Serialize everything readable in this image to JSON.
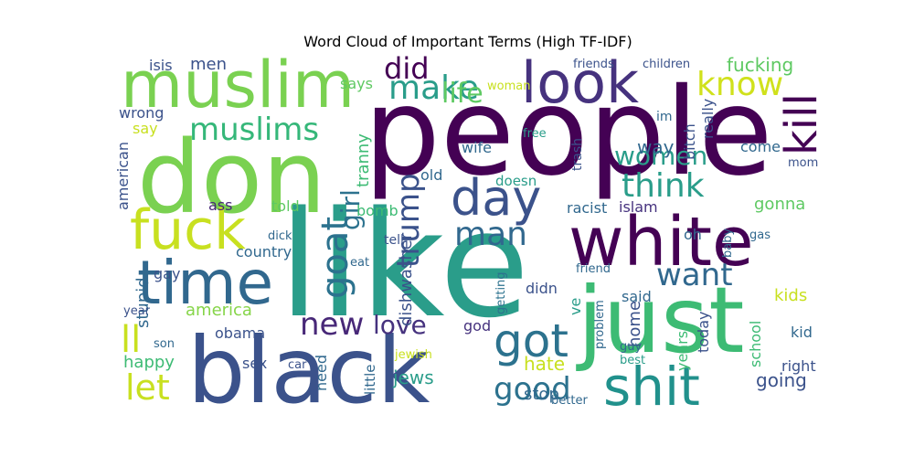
{
  "chart_data": {
    "type": "wordcloud",
    "title": "Word Cloud of Important Terms (High TF-IDF)",
    "colormap": "viridis",
    "words": [
      {
        "text": "people",
        "weight": 1.0,
        "color": "#440154"
      },
      {
        "text": "like",
        "weight": 0.98,
        "color": "#2a9d8a"
      },
      {
        "text": "don",
        "weight": 0.9,
        "color": "#7ad151"
      },
      {
        "text": "black",
        "weight": 0.88,
        "color": "#3b528b"
      },
      {
        "text": "just",
        "weight": 0.84,
        "color": "#3dbb74"
      },
      {
        "text": "white",
        "weight": 0.7,
        "color": "#440154"
      },
      {
        "text": "muslim",
        "weight": 0.62,
        "color": "#7ad151"
      },
      {
        "text": "look",
        "weight": 0.6,
        "color": "#46327e"
      },
      {
        "text": "time",
        "weight": 0.58,
        "color": "#31688e"
      },
      {
        "text": "fuck",
        "weight": 0.55,
        "color": "#c8e020"
      },
      {
        "text": "shit",
        "weight": 0.52,
        "color": "#21918c"
      },
      {
        "text": "day",
        "weight": 0.5,
        "color": "#3b528b"
      },
      {
        "text": "got",
        "weight": 0.45,
        "color": "#2c728e"
      },
      {
        "text": "kill",
        "weight": 0.4,
        "color": "#440154"
      },
      {
        "text": "muslims",
        "weight": 0.36,
        "color": "#35b779"
      },
      {
        "text": "man",
        "weight": 0.36,
        "color": "#31688e"
      },
      {
        "text": "new",
        "weight": 0.34,
        "color": "#482878"
      },
      {
        "text": "ll",
        "weight": 0.34,
        "color": "#c8e020"
      },
      {
        "text": "goat",
        "weight": 0.33,
        "color": "#2c728e"
      },
      {
        "text": "make",
        "weight": 0.32,
        "color": "#2a9d8a"
      },
      {
        "text": "know",
        "weight": 0.31,
        "color": "#d0e11c"
      },
      {
        "text": "think",
        "weight": 0.31,
        "color": "#2a9d8a"
      },
      {
        "text": "want",
        "weight": 0.31,
        "color": "#31688e"
      },
      {
        "text": "did",
        "weight": 0.3,
        "color": "#440154"
      },
      {
        "text": "trump",
        "weight": 0.29,
        "color": "#3b528b"
      },
      {
        "text": "good",
        "weight": 0.29,
        "color": "#2c728e"
      },
      {
        "text": "let",
        "weight": 0.29,
        "color": "#c8e020"
      },
      {
        "text": "life",
        "weight": 0.27,
        "color": "#5ec962"
      },
      {
        "text": "women",
        "weight": 0.27,
        "color": "#2a9d8a"
      },
      {
        "text": "girl",
        "weight": 0.25,
        "color": "#2c728e"
      },
      {
        "text": "love",
        "weight": 0.25,
        "color": "#46327e"
      },
      {
        "text": "fucking",
        "weight": 0.18,
        "color": "#5ec962"
      },
      {
        "text": "america",
        "weight": 0.16,
        "color": "#86d549"
      },
      {
        "text": "tranny",
        "weight": 0.15,
        "color": "#3dbb74"
      },
      {
        "text": "dishwasher",
        "weight": 0.15,
        "color": "#3b528b"
      },
      {
        "text": "happy",
        "weight": 0.15,
        "color": "#3dbb74"
      },
      {
        "text": "jews",
        "weight": 0.15,
        "color": "#2a9d8a"
      },
      {
        "text": "hate",
        "weight": 0.15,
        "color": "#c8e020"
      },
      {
        "text": "stop",
        "weight": 0.15,
        "color": "#31688e"
      },
      {
        "text": "going",
        "weight": 0.15,
        "color": "#3b528b"
      },
      {
        "text": "kids",
        "weight": 0.15,
        "color": "#c8e020"
      },
      {
        "text": "gonna",
        "weight": 0.14,
        "color": "#5ec962"
      },
      {
        "text": "way",
        "weight": 0.14,
        "color": "#31688e"
      },
      {
        "text": "men",
        "weight": 0.13,
        "color": "#3b528b"
      },
      {
        "text": "stupid",
        "weight": 0.13,
        "color": "#31688e"
      },
      {
        "text": "home",
        "weight": 0.13,
        "color": "#3b528b"
      },
      {
        "text": "said",
        "weight": 0.13,
        "color": "#31688e"
      },
      {
        "text": "country",
        "weight": 0.13,
        "color": "#31688e"
      },
      {
        "text": "obama",
        "weight": 0.13,
        "color": "#3b528b"
      },
      {
        "text": "racist",
        "weight": 0.12,
        "color": "#31688e"
      },
      {
        "text": "islam",
        "weight": 0.12,
        "color": "#46327e"
      },
      {
        "text": "oh",
        "weight": 0.12,
        "color": "#31688e"
      },
      {
        "text": "old",
        "weight": 0.12,
        "color": "#31688e"
      },
      {
        "text": "wife",
        "weight": 0.12,
        "color": "#31688e"
      },
      {
        "text": "told",
        "weight": 0.12,
        "color": "#5ec962"
      },
      {
        "text": "bomb",
        "weight": 0.12,
        "color": "#3dbb74"
      },
      {
        "text": "didn",
        "weight": 0.12,
        "color": "#3b528b"
      },
      {
        "text": "need",
        "weight": 0.12,
        "color": "#31688e"
      },
      {
        "text": "god",
        "weight": 0.12,
        "color": "#46327e"
      },
      {
        "text": "bitch",
        "weight": 0.12,
        "color": "#3b528b"
      },
      {
        "text": "really",
        "weight": 0.12,
        "color": "#3b528b"
      },
      {
        "text": "come",
        "weight": 0.12,
        "color": "#31688e"
      },
      {
        "text": "years",
        "weight": 0.12,
        "color": "#3dbb74"
      },
      {
        "text": "today",
        "weight": 0.12,
        "color": "#3b528b"
      },
      {
        "text": "school",
        "weight": 0.12,
        "color": "#3dbb74"
      },
      {
        "text": "right",
        "weight": 0.12,
        "color": "#3b528b"
      },
      {
        "text": "kid",
        "weight": 0.12,
        "color": "#31688e"
      },
      {
        "text": "says",
        "weight": 0.11,
        "color": "#5ec962"
      },
      {
        "text": "isis",
        "weight": 0.11,
        "color": "#3b528b"
      },
      {
        "text": "wrong",
        "weight": 0.11,
        "color": "#3b528b"
      },
      {
        "text": "say",
        "weight": 0.11,
        "color": "#c8e020"
      },
      {
        "text": "american",
        "weight": 0.11,
        "color": "#3b528b"
      },
      {
        "text": "ass",
        "weight": 0.11,
        "color": "#482878"
      },
      {
        "text": "gay",
        "weight": 0.11,
        "color": "#3b528b"
      },
      {
        "text": "ve",
        "weight": 0.11,
        "color": "#2a9d8a"
      },
      {
        "text": "sex",
        "weight": 0.11,
        "color": "#3b528b"
      },
      {
        "text": "little",
        "weight": 0.1,
        "color": "#31688e"
      },
      {
        "text": "doesn",
        "weight": 0.1,
        "color": "#2a9d8a"
      },
      {
        "text": "trash",
        "weight": 0.1,
        "color": "#3b528b"
      },
      {
        "text": "im",
        "weight": 0.1,
        "color": "#31688e"
      },
      {
        "text": "tell",
        "weight": 0.1,
        "color": "#3b528b"
      },
      {
        "text": "children",
        "weight": 0.09,
        "color": "#3b528b"
      },
      {
        "text": "friends",
        "weight": 0.09,
        "color": "#3b528b"
      },
      {
        "text": "friend",
        "weight": 0.09,
        "color": "#31688e"
      },
      {
        "text": "dick",
        "weight": 0.09,
        "color": "#31688e"
      },
      {
        "text": "eat",
        "weight": 0.09,
        "color": "#31688e"
      },
      {
        "text": "year",
        "weight": 0.09,
        "color": "#3b528b"
      },
      {
        "text": "son",
        "weight": 0.09,
        "color": "#31688e"
      },
      {
        "text": "car",
        "weight": 0.09,
        "color": "#3b528b"
      },
      {
        "text": "jewish",
        "weight": 0.09,
        "color": "#c8e020"
      },
      {
        "text": "better",
        "weight": 0.08,
        "color": "#31688e"
      },
      {
        "text": "best",
        "weight": 0.09,
        "color": "#2a9d8a"
      },
      {
        "text": "guy",
        "weight": 0.09,
        "color": "#31688e"
      },
      {
        "text": "problem",
        "weight": 0.08,
        "color": "#31688e"
      },
      {
        "text": "getting",
        "weight": 0.08,
        "color": "#2c728e"
      },
      {
        "text": "baby",
        "weight": 0.08,
        "color": "#31688e"
      },
      {
        "text": "gas",
        "weight": 0.08,
        "color": "#31688e"
      },
      {
        "text": "mom",
        "weight": 0.08,
        "color": "#3b528b"
      },
      {
        "text": "free",
        "weight": 0.08,
        "color": "#2a9d8a"
      },
      {
        "text": "woman",
        "weight": 0.08,
        "color": "#c8e020"
      }
    ]
  }
}
